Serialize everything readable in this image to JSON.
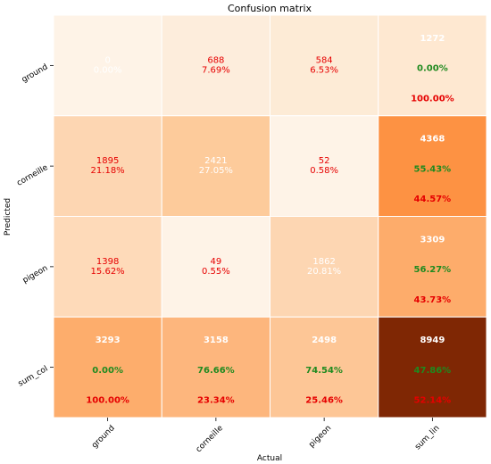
{
  "chart_data": {
    "type": "heatmap",
    "title": "Confusion matrix",
    "xlabel": "Actual",
    "ylabel": "Predicted",
    "x_categories": [
      "ground",
      "corneille",
      "pigeon",
      "sum_lin"
    ],
    "y_categories": [
      "ground",
      "corneille",
      "pigeon",
      "sum_col"
    ],
    "cells": [
      [
        {
          "lines": [
            "0",
            "0.00%"
          ],
          "color": "#fef3e7",
          "text_color": "#ffffff"
        },
        {
          "lines": [
            "688",
            "7.69%"
          ],
          "color": "#fdeddc",
          "text_color": "#e60000"
        },
        {
          "lines": [
            "584",
            "6.53%"
          ],
          "color": "#fdebd6",
          "text_color": "#e60000"
        },
        {
          "lines": [
            "1272",
            "0.00%",
            "100.00%"
          ],
          "color": "#fee8d1",
          "text_color": "#ffffff",
          "line_colors": [
            "#ffffff",
            "#1f8a1f",
            "#e60000"
          ],
          "bold": true
        }
      ],
      [
        {
          "lines": [
            "1895",
            "21.18%"
          ],
          "color": "#fdd6b2",
          "text_color": "#e60000"
        },
        {
          "lines": [
            "2421",
            "27.05%"
          ],
          "color": "#fdcb9b",
          "text_color": "#ffffff"
        },
        {
          "lines": [
            "52",
            "0.58%"
          ],
          "color": "#fef3e7",
          "text_color": "#e60000"
        },
        {
          "lines": [
            "4368",
            "55.43%",
            "44.57%"
          ],
          "color": "#fd9243",
          "text_color": "#ffffff",
          "line_colors": [
            "#ffffff",
            "#1f8a1f",
            "#e60000"
          ],
          "bold": true
        }
      ],
      [
        {
          "lines": [
            "1398",
            "15.62%"
          ],
          "color": "#fedab9",
          "text_color": "#e60000"
        },
        {
          "lines": [
            "49",
            "0.55%"
          ],
          "color": "#fef3e7",
          "text_color": "#e60000"
        },
        {
          "lines": [
            "1862",
            "20.81%"
          ],
          "color": "#fdd6b2",
          "text_color": "#ffffff"
        },
        {
          "lines": [
            "3309",
            "56.27%",
            "43.73%"
          ],
          "color": "#fdac6b",
          "text_color": "#ffffff",
          "line_colors": [
            "#ffffff",
            "#1f8a1f",
            "#e60000"
          ],
          "bold": true
        }
      ],
      [
        {
          "lines": [
            "3293",
            "0.00%",
            "100.00%"
          ],
          "color": "#fdad6c",
          "text_color": "#ffffff",
          "line_colors": [
            "#ffffff",
            "#1f8a1f",
            "#e60000"
          ],
          "bold": true
        },
        {
          "lines": [
            "3158",
            "76.66%",
            "23.34%"
          ],
          "color": "#fdb67d",
          "text_color": "#ffffff",
          "line_colors": [
            "#ffffff",
            "#1f8a1f",
            "#e60000"
          ],
          "bold": true
        },
        {
          "lines": [
            "2498",
            "74.54%",
            "25.46%"
          ],
          "color": "#fdc696",
          "text_color": "#ffffff",
          "line_colors": [
            "#ffffff",
            "#1f8a1f",
            "#e60000"
          ],
          "bold": true
        },
        {
          "lines": [
            "8949",
            "47.86%",
            "52.14%"
          ],
          "color": "#7f2704",
          "text_color": "#ffffff",
          "line_colors": [
            "#ffffff",
            "#1f8a1f",
            "#e60000"
          ],
          "bold": true
        }
      ]
    ],
    "grid": false
  }
}
